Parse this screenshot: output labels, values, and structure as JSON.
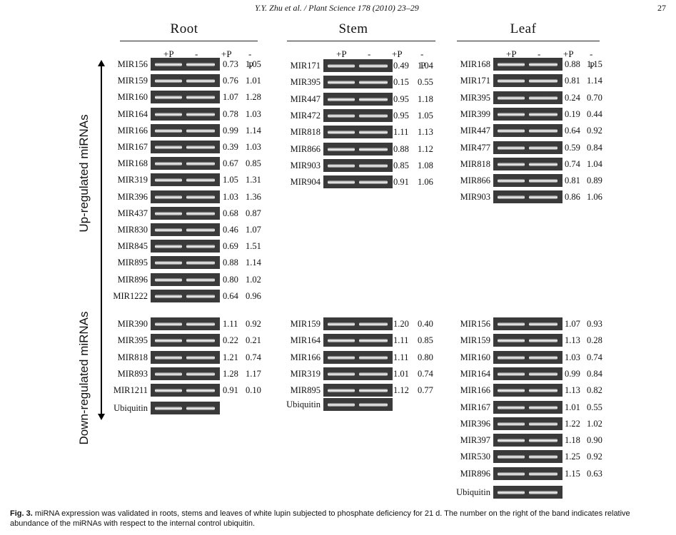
{
  "header": {
    "citation": "Y.Y. Zhu et al. / Plant Science 178 (2010) 23–29",
    "page": "27"
  },
  "axis_labels": {
    "up": "Up-regulated miRNAs",
    "down": "Down-regulated miRNAs"
  },
  "column_headers": {
    "plus_p": "+P",
    "minus_p": "-P"
  },
  "panels": {
    "root": {
      "title": "Root",
      "up": [
        {
          "name": "MIR156",
          "plus": "0.73",
          "minus": "1.05"
        },
        {
          "name": "MIR159",
          "plus": "0.76",
          "minus": "1.01"
        },
        {
          "name": "MIR160",
          "plus": "1.07",
          "minus": "1.28"
        },
        {
          "name": "MIR164",
          "plus": "0.78",
          "minus": "1.03"
        },
        {
          "name": "MIR166",
          "plus": "0.99",
          "minus": "1.14"
        },
        {
          "name": "MIR167",
          "plus": "0.39",
          "minus": "1.03"
        },
        {
          "name": "MIR168",
          "plus": "0.67",
          "minus": "0.85"
        },
        {
          "name": "MIR319",
          "plus": "1.05",
          "minus": "1.31"
        },
        {
          "name": "MIR396",
          "plus": "1.03",
          "minus": "1.36"
        },
        {
          "name": "MIR437",
          "plus": "0.68",
          "minus": "0.87"
        },
        {
          "name": "MIR830",
          "plus": "0.46",
          "minus": "1.07"
        },
        {
          "name": "MIR845",
          "plus": "0.69",
          "minus": "1.51"
        },
        {
          "name": "MIR895",
          "plus": "0.88",
          "minus": "1.14"
        },
        {
          "name": "MIR896",
          "plus": "0.80",
          "minus": "1.02"
        },
        {
          "name": "MIR1222",
          "plus": "0.64",
          "minus": "0.96"
        }
      ],
      "down": [
        {
          "name": "MIR390",
          "plus": "1.11",
          "minus": "0.92"
        },
        {
          "name": "MIR395",
          "plus": "0.22",
          "minus": "0.21"
        },
        {
          "name": "MIR818",
          "plus": "1.21",
          "minus": "0.74"
        },
        {
          "name": "MIR893",
          "plus": "1.28",
          "minus": "1.17"
        },
        {
          "name": "MIR1211",
          "plus": "0.91",
          "minus": "0.10"
        }
      ],
      "control": "Ubiquitin"
    },
    "stem": {
      "title": "Stem",
      "up": [
        {
          "name": "MIR171",
          "plus": "0.49",
          "minus": "1.04"
        },
        {
          "name": "MIR395",
          "plus": "0.15",
          "minus": "0.55"
        },
        {
          "name": "MIR447",
          "plus": "0.95",
          "minus": "1.18"
        },
        {
          "name": "MIR472",
          "plus": "0.95",
          "minus": "1.05"
        },
        {
          "name": "MIR818",
          "plus": "1.11",
          "minus": "1.13"
        },
        {
          "name": "MIR866",
          "plus": "0.88",
          "minus": "1.12"
        },
        {
          "name": "MIR903",
          "plus": "0.85",
          "minus": "1.08"
        },
        {
          "name": "MIR904",
          "plus": "0.91",
          "minus": "1.06"
        }
      ],
      "down": [
        {
          "name": "MIR159",
          "plus": "1.20",
          "minus": "0.40"
        },
        {
          "name": "MIR164",
          "plus": "1.11",
          "minus": "0.85"
        },
        {
          "name": "MIR166",
          "plus": "1.11",
          "minus": "0.80"
        },
        {
          "name": "MIR319",
          "plus": "1.01",
          "minus": "0.74"
        },
        {
          "name": "MIR895",
          "plus": "1.12",
          "minus": "0.77"
        }
      ],
      "control": "Ubiquitin"
    },
    "leaf": {
      "title": "Leaf",
      "up": [
        {
          "name": "MIR168",
          "plus": "0.88",
          "minus": "1.15"
        },
        {
          "name": "MIR171",
          "plus": "0.81",
          "minus": "1.14"
        },
        {
          "name": "MIR395",
          "plus": "0.24",
          "minus": "0.70"
        },
        {
          "name": "MIR399",
          "plus": "0.19",
          "minus": "0.44"
        },
        {
          "name": "MIR447",
          "plus": "0.64",
          "minus": "0.92"
        },
        {
          "name": "MIR477",
          "plus": "0.59",
          "minus": "0.84"
        },
        {
          "name": "MIR818",
          "plus": "0.74",
          "minus": "1.04"
        },
        {
          "name": "MIR866",
          "plus": "0.81",
          "minus": "0.89"
        },
        {
          "name": "MIR903",
          "plus": "0.86",
          "minus": "1.06"
        }
      ],
      "down": [
        {
          "name": "MIR156",
          "plus": "1.07",
          "minus": "0.93"
        },
        {
          "name": "MIR159",
          "plus": "1.13",
          "minus": "0.28"
        },
        {
          "name": "MIR160",
          "plus": "1.03",
          "minus": "0.74"
        },
        {
          "name": "MIR164",
          "plus": "0.99",
          "minus": "0.84"
        },
        {
          "name": "MIR166",
          "plus": "1.13",
          "minus": "0.82"
        },
        {
          "name": "MIR167",
          "plus": "1.01",
          "minus": "0.55"
        },
        {
          "name": "MIR396",
          "plus": "1.22",
          "minus": "1.02"
        },
        {
          "name": "MIR397",
          "plus": "1.18",
          "minus": "0.90"
        },
        {
          "name": "MIR530",
          "plus": "1.25",
          "minus": "0.92"
        },
        {
          "name": "MIR896",
          "plus": "1.15",
          "minus": "0.63"
        }
      ],
      "control": "Ubiquitin"
    }
  },
  "caption": {
    "label": "Fig. 3.",
    "text": "miRNA expression was validated in roots, stems and leaves of white lupin subjected to phosphate deficiency for 21 d. The number on the right of the band indicates relative abundance of the miRNAs with respect to the internal control ubiquitin."
  }
}
